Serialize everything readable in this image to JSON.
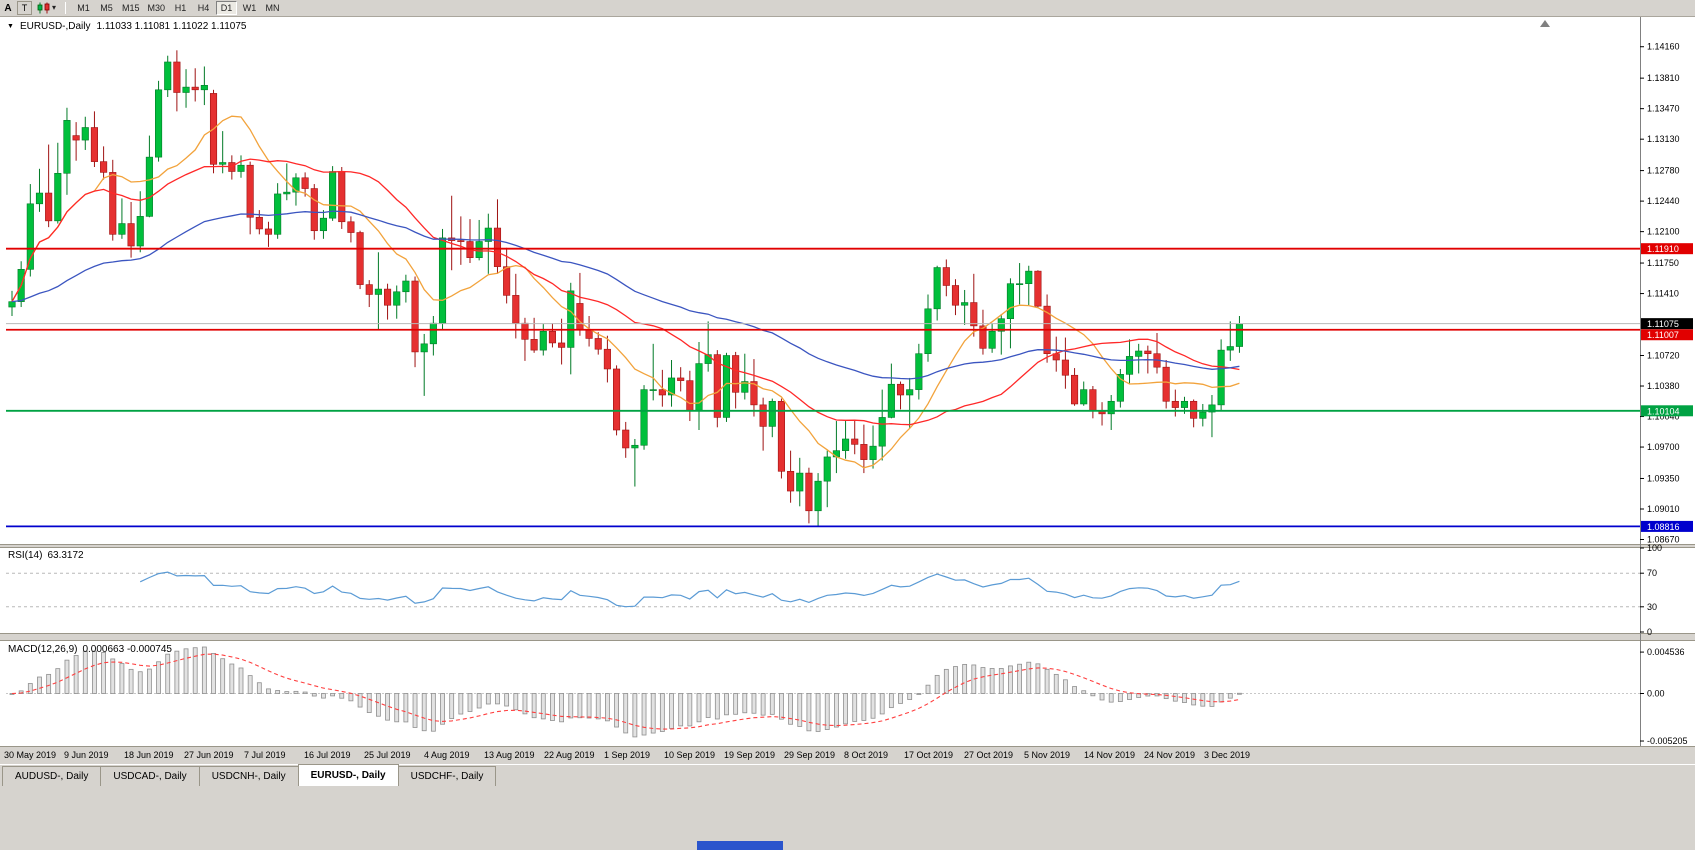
{
  "toolbar": {
    "corner_label": "A",
    "text_tool_label": "T",
    "dropdown_caret": "▾",
    "timeframes": [
      "M1",
      "M5",
      "M15",
      "M30",
      "H1",
      "H4",
      "D1",
      "W1",
      "MN"
    ],
    "active_timeframe": "D1"
  },
  "chart": {
    "collapse_icon": "▼",
    "symbol_label": "EURUSD-,Daily",
    "ohlc_text": "1.11033 1.11081 1.11022 1.11075"
  },
  "rsi_panel": {
    "label": "RSI(14)",
    "value": "63.3172"
  },
  "macd_panel": {
    "label": "MACD(12,26,9)",
    "value": "0.000663 -0.000745"
  },
  "tabs": [
    {
      "label": "AUDUSD-, Daily",
      "active": false
    },
    {
      "label": "USDCAD-, Daily",
      "active": false
    },
    {
      "label": "USDCNH-, Daily",
      "active": false
    },
    {
      "label": "EURUSD-, Daily",
      "active": true
    },
    {
      "label": "USDCHF-, Daily",
      "active": false
    }
  ],
  "footer": {
    "taskbar_color": "#2a54cc"
  },
  "chart_data": {
    "type": "candlestick",
    "title": "EURUSD Daily",
    "bull_color": "#00bf3c",
    "bear_color": "#e53030",
    "ylim": [
      1.0862,
      1.1448
    ],
    "price_axis_ticks": [
      "1.14160",
      "1.13810",
      "1.13470",
      "1.13130",
      "1.12780",
      "1.12440",
      "1.12100",
      "1.11750",
      "1.11410",
      "1.10720",
      "1.10380",
      "1.10040",
      "1.09700",
      "1.09350",
      "1.09010",
      "1.08670"
    ],
    "current_price": {
      "value": 1.11075,
      "label": "1.11075",
      "color": "#000000"
    },
    "horizontal_lines": [
      {
        "value": 1.1191,
        "label": "1.11910",
        "color": "#e10000"
      },
      {
        "value": 1.11007,
        "label": "1.11007",
        "color": "#e10000"
      },
      {
        "value": 1.10104,
        "label": "1.10104",
        "color": "#00a243"
      },
      {
        "value": 1.08816,
        "label": "1.08816",
        "color": "#0000cd"
      }
    ],
    "x_axis_labels": [
      "30 May 2019",
      "9 Jun 2019",
      "18 Jun 2019",
      "27 Jun 2019",
      "7 Jul 2019",
      "16 Jul 2019",
      "25 Jul 2019",
      "4 Aug 2019",
      "13 Aug 2019",
      "22 Aug 2019",
      "1 Sep 2019",
      "10 Sep 2019",
      "19 Sep 2019",
      "29 Sep 2019",
      "8 Oct 2019",
      "17 Oct 2019",
      "27 Oct 2019",
      "5 Nov 2019",
      "14 Nov 2019",
      "24 Nov 2019",
      "3 Dec 2019"
    ],
    "overlays": [
      {
        "name": "ma-fast",
        "type": "sma",
        "period": 10,
        "color": "#f2a33c"
      },
      {
        "name": "ma-mid",
        "type": "sma",
        "period": 25,
        "color": "#ff2828"
      },
      {
        "name": "ma-slow",
        "type": "ema",
        "period": 55,
        "color": "#3b55c0"
      }
    ],
    "indicators": [
      {
        "name": "RSI",
        "params": [
          14
        ],
        "color": "#5b9bd5",
        "range": [
          0,
          100
        ],
        "last_value": 63.3172,
        "levels": [
          {
            "value": 100,
            "label": "100",
            "dashed": false
          },
          {
            "value": 70,
            "label": "70",
            "dashed": true
          },
          {
            "value": 30,
            "label": "30",
            "dashed": true
          },
          {
            "value": 0,
            "label": "0",
            "dashed": false
          }
        ]
      },
      {
        "name": "MACD",
        "params": [
          12,
          26,
          9
        ],
        "histogram_color": "#e2e2e2",
        "histogram_outline": "#8f8f8f",
        "signal_color": "#ff4040",
        "last_values": [
          0.000663,
          -0.000745
        ],
        "levels": [
          {
            "value": 0.004536,
            "label": "0.004536"
          },
          {
            "value": 0,
            "label": "0.00"
          },
          {
            "value": -0.005205,
            "label": "-0.005205"
          }
        ]
      }
    ],
    "candles": [
      [
        1.1126,
        1.1144,
        1.1116,
        1.1132
      ],
      [
        1.1132,
        1.1177,
        1.1126,
        1.1168
      ],
      [
        1.1168,
        1.1263,
        1.116,
        1.1241
      ],
      [
        1.1241,
        1.128,
        1.1232,
        1.1253
      ],
      [
        1.1253,
        1.1307,
        1.1215,
        1.1222
      ],
      [
        1.1222,
        1.1309,
        1.1219,
        1.1275
      ],
      [
        1.1275,
        1.1348,
        1.1251,
        1.1334
      ],
      [
        1.1317,
        1.1332,
        1.1289,
        1.1312
      ],
      [
        1.1312,
        1.1338,
        1.1301,
        1.1326
      ],
      [
        1.1326,
        1.1344,
        1.1282,
        1.1288
      ],
      [
        1.1288,
        1.1305,
        1.1268,
        1.1276
      ],
      [
        1.1276,
        1.129,
        1.12,
        1.1207
      ],
      [
        1.1207,
        1.1247,
        1.1202,
        1.1219
      ],
      [
        1.1219,
        1.1243,
        1.1181,
        1.1194
      ],
      [
        1.1194,
        1.1255,
        1.1187,
        1.1227
      ],
      [
        1.1227,
        1.1317,
        1.1226,
        1.1293
      ],
      [
        1.1293,
        1.1378,
        1.1288,
        1.1368
      ],
      [
        1.1368,
        1.1406,
        1.136,
        1.1399
      ],
      [
        1.1399,
        1.1412,
        1.1344,
        1.1365
      ],
      [
        1.1365,
        1.1391,
        1.1348,
        1.1371
      ],
      [
        1.1371,
        1.1392,
        1.1355,
        1.1368
      ],
      [
        1.1368,
        1.1394,
        1.1351,
        1.1373
      ],
      [
        1.1364,
        1.1368,
        1.1275,
        1.1285
      ],
      [
        1.1285,
        1.1322,
        1.1275,
        1.1287
      ],
      [
        1.1287,
        1.1295,
        1.1268,
        1.1277
      ],
      [
        1.1277,
        1.1295,
        1.127,
        1.1284
      ],
      [
        1.1284,
        1.1288,
        1.1207,
        1.1226
      ],
      [
        1.1226,
        1.1234,
        1.1207,
        1.1213
      ],
      [
        1.1213,
        1.1221,
        1.1193,
        1.1207
      ],
      [
        1.1207,
        1.1264,
        1.1202,
        1.1252
      ],
      [
        1.1252,
        1.1286,
        1.1245,
        1.1254
      ],
      [
        1.1254,
        1.1275,
        1.1239,
        1.127
      ],
      [
        1.127,
        1.1276,
        1.1249,
        1.1258
      ],
      [
        1.1258,
        1.1263,
        1.1201,
        1.1211
      ],
      [
        1.1211,
        1.1234,
        1.1202,
        1.1225
      ],
      [
        1.1225,
        1.1283,
        1.1222,
        1.1277
      ],
      [
        1.1277,
        1.1282,
        1.1213,
        1.1221
      ],
      [
        1.1221,
        1.1227,
        1.1198,
        1.1209
      ],
      [
        1.1209,
        1.1211,
        1.1146,
        1.1151
      ],
      [
        1.1151,
        1.1156,
        1.1126,
        1.114
      ],
      [
        1.114,
        1.1187,
        1.1101,
        1.1146
      ],
      [
        1.1146,
        1.1152,
        1.1112,
        1.1128
      ],
      [
        1.1128,
        1.115,
        1.1113,
        1.1143
      ],
      [
        1.1143,
        1.1162,
        1.1131,
        1.1155
      ],
      [
        1.1155,
        1.116,
        1.1059,
        1.1076
      ],
      [
        1.1076,
        1.1096,
        1.1027,
        1.1085
      ],
      [
        1.1085,
        1.1116,
        1.1072,
        1.1108
      ],
      [
        1.1108,
        1.1213,
        1.1101,
        1.1203
      ],
      [
        1.1203,
        1.125,
        1.1167,
        1.12
      ],
      [
        1.12,
        1.1227,
        1.1173,
        1.1199
      ],
      [
        1.1199,
        1.1224,
        1.1175,
        1.1181
      ],
      [
        1.1181,
        1.1223,
        1.1178,
        1.1199
      ],
      [
        1.1199,
        1.123,
        1.1163,
        1.1214
      ],
      [
        1.1214,
        1.1246,
        1.1163,
        1.1171
      ],
      [
        1.1171,
        1.1192,
        1.113,
        1.1139
      ],
      [
        1.1139,
        1.1163,
        1.1091,
        1.1108
      ],
      [
        1.1108,
        1.1114,
        1.1066,
        1.109
      ],
      [
        1.109,
        1.1114,
        1.1075,
        1.1078
      ],
      [
        1.1078,
        1.1107,
        1.1072,
        1.1099
      ],
      [
        1.1099,
        1.1108,
        1.1081,
        1.1086
      ],
      [
        1.1086,
        1.1113,
        1.1062,
        1.1081
      ],
      [
        1.1081,
        1.1153,
        1.1051,
        1.1144
      ],
      [
        1.113,
        1.1164,
        1.1094,
        1.1101
      ],
      [
        1.1101,
        1.1116,
        1.1082,
        1.1091
      ],
      [
        1.1091,
        1.1098,
        1.1073,
        1.1079
      ],
      [
        1.1079,
        1.1094,
        1.1042,
        1.1057
      ],
      [
        1.1057,
        1.1061,
        1.0983,
        1.0989
      ],
      [
        1.0989,
        1.0998,
        1.0958,
        1.0969
      ],
      [
        1.0969,
        1.0979,
        1.0926,
        1.0972
      ],
      [
        1.0972,
        1.1039,
        1.0967,
        1.1034
      ],
      [
        1.1034,
        1.1085,
        1.1022,
        1.1034
      ],
      [
        1.1034,
        1.1056,
        1.1015,
        1.1028
      ],
      [
        1.1028,
        1.1067,
        1.1015,
        1.1047
      ],
      [
        1.1047,
        1.1059,
        1.1032,
        1.1044
      ],
      [
        1.1044,
        1.1055,
        1.0999,
        1.1011
      ],
      [
        1.1011,
        1.1087,
        1.0989,
        1.1063
      ],
      [
        1.1063,
        1.111,
        1.1054,
        1.1073
      ],
      [
        1.1073,
        1.1078,
        1.0992,
        1.1003
      ],
      [
        1.1003,
        1.1075,
        1.0998,
        1.1072
      ],
      [
        1.1072,
        1.1076,
        1.1013,
        1.1031
      ],
      [
        1.1031,
        1.1074,
        1.1023,
        1.1043
      ],
      [
        1.1043,
        1.1068,
        1.1004,
        1.1017
      ],
      [
        1.1017,
        1.1025,
        1.0966,
        1.0993
      ],
      [
        1.0993,
        1.1024,
        1.0981,
        1.1021
      ],
      [
        1.1021,
        1.1024,
        1.0935,
        1.0943
      ],
      [
        1.0943,
        1.0966,
        1.0908,
        1.0921
      ],
      [
        1.0921,
        1.0958,
        1.0904,
        1.0941
      ],
      [
        1.0941,
        1.0947,
        1.0885,
        1.0899
      ],
      [
        1.0899,
        1.0941,
        1.0882,
        1.0932
      ],
      [
        1.0932,
        1.0966,
        1.0903,
        1.0959
      ],
      [
        1.0959,
        1.0999,
        1.0941,
        1.0966
      ],
      [
        1.0966,
        1.0999,
        1.0957,
        1.0979
      ],
      [
        1.0979,
        1.1,
        1.0962,
        1.0973
      ],
      [
        1.0973,
        1.0995,
        1.0941,
        1.0956
      ],
      [
        1.0956,
        1.0994,
        1.0946,
        1.0971
      ],
      [
        1.0971,
        1.1034,
        1.0955,
        1.1003
      ],
      [
        1.1003,
        1.1063,
        1.1002,
        1.104
      ],
      [
        1.104,
        1.1043,
        1.1012,
        1.1028
      ],
      [
        1.1028,
        1.1047,
        1.0991,
        1.1034
      ],
      [
        1.1034,
        1.1085,
        1.1023,
        1.1074
      ],
      [
        1.1074,
        1.114,
        1.1065,
        1.1124
      ],
      [
        1.1124,
        1.1172,
        1.1111,
        1.117
      ],
      [
        1.117,
        1.1179,
        1.1138,
        1.115
      ],
      [
        1.115,
        1.1157,
        1.1117,
        1.1128
      ],
      [
        1.1128,
        1.1145,
        1.1106,
        1.1131
      ],
      [
        1.1131,
        1.1163,
        1.1093,
        1.1105
      ],
      [
        1.1105,
        1.1123,
        1.1073,
        1.108
      ],
      [
        1.108,
        1.1108,
        1.1075,
        1.1099
      ],
      [
        1.1099,
        1.1118,
        1.1073,
        1.1113
      ],
      [
        1.1113,
        1.1158,
        1.108,
        1.1152
      ],
      [
        1.1152,
        1.1175,
        1.1129,
        1.1152
      ],
      [
        1.1152,
        1.1172,
        1.1128,
        1.1166
      ],
      [
        1.1166,
        1.1167,
        1.1125,
        1.1127
      ],
      [
        1.1127,
        1.114,
        1.1064,
        1.1074
      ],
      [
        1.1074,
        1.1093,
        1.1054,
        1.1067
      ],
      [
        1.1067,
        1.1092,
        1.1035,
        1.105
      ],
      [
        1.105,
        1.1058,
        1.1016,
        1.1018
      ],
      [
        1.1018,
        1.1043,
        1.1016,
        1.1034
      ],
      [
        1.1034,
        1.1038,
        1.1002,
        1.101
      ],
      [
        1.101,
        1.102,
        1.0994,
        1.1007
      ],
      [
        1.1007,
        1.1028,
        1.0989,
        1.1021
      ],
      [
        1.1021,
        1.1057,
        1.1014,
        1.1051
      ],
      [
        1.1051,
        1.109,
        1.1041,
        1.1071
      ],
      [
        1.1071,
        1.1085,
        1.1052,
        1.1077
      ],
      [
        1.1077,
        1.1083,
        1.1052,
        1.1074
      ],
      [
        1.1074,
        1.1097,
        1.1052,
        1.1059
      ],
      [
        1.1059,
        1.1067,
        1.1013,
        1.1021
      ],
      [
        1.1021,
        1.1034,
        1.1004,
        1.1014
      ],
      [
        1.1014,
        1.1026,
        1.1007,
        1.1021
      ],
      [
        1.1021,
        1.1023,
        1.0992,
        1.1002
      ],
      [
        1.1002,
        1.1018,
        1.0993,
        1.1009
      ],
      [
        1.1009,
        1.1028,
        1.0981,
        1.1017
      ],
      [
        1.1017,
        1.109,
        1.1011,
        1.1078
      ],
      [
        1.1078,
        1.111,
        1.1066,
        1.1082
      ],
      [
        1.1082,
        1.1116,
        1.1075,
        1.1107
      ]
    ]
  }
}
